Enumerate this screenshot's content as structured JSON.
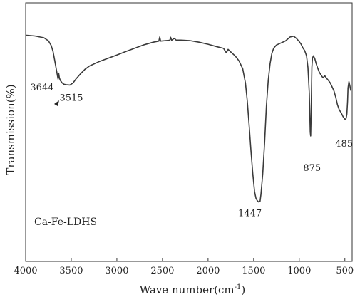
{
  "chart_data": {
    "type": "line",
    "title": "",
    "xlabel": "Wave number(cm",
    "xlabel_sup": "-1",
    "xlabel_close": ")",
    "ylabel": "Transmission(%)",
    "xlim": [
      4000,
      400
    ],
    "x_reversed": true,
    "ylim": [
      0,
      100
    ],
    "y_ticks_shown": false,
    "x_ticks": [
      4000,
      3500,
      3000,
      2500,
      2000,
      1500,
      1000,
      500
    ],
    "x_tick_labels": [
      "4000",
      "3500",
      "3000",
      "2500",
      "2000",
      "1500",
      "1000",
      "500"
    ],
    "grid": false,
    "legend": "none",
    "annotation": "Ca-Fe-LDHS",
    "peak_labels": [
      {
        "text": "3644",
        "x": 3644,
        "y": 70.5
      },
      {
        "text": "3515",
        "x": 3515,
        "y": 68.2
      },
      {
        "text": "1447",
        "x": 1447,
        "y": 23
      },
      {
        "text": "875",
        "x": 875,
        "y": 48.5
      },
      {
        "text": "485",
        "x": 485,
        "y": 52
      }
    ],
    "line_color": "#3a3a3a",
    "series": [
      {
        "values": [
          [
            4000,
            87.5
          ],
          [
            3900,
            87.2
          ],
          [
            3800,
            86.5
          ],
          [
            3750,
            85.3
          ],
          [
            3720,
            83.5
          ],
          [
            3700,
            81.2
          ],
          [
            3680,
            77.5
          ],
          [
            3660,
            73.5
          ],
          [
            3650,
            71.5
          ],
          [
            3644,
            70.5
          ],
          [
            3638,
            72.8
          ],
          [
            3630,
            71.0
          ],
          [
            3620,
            70.0
          ],
          [
            3600,
            69.0
          ],
          [
            3580,
            68.5
          ],
          [
            3550,
            68.3
          ],
          [
            3515,
            68.2
          ],
          [
            3480,
            69.0
          ],
          [
            3450,
            70.5
          ],
          [
            3400,
            72.5
          ],
          [
            3350,
            74.3
          ],
          [
            3300,
            75.6
          ],
          [
            3200,
            77.2
          ],
          [
            3100,
            78.5
          ],
          [
            3000,
            79.8
          ],
          [
            2900,
            81.2
          ],
          [
            2800,
            82.5
          ],
          [
            2700,
            83.8
          ],
          [
            2600,
            84.8
          ],
          [
            2540,
            85.2
          ],
          [
            2530,
            86.8
          ],
          [
            2520,
            85.2
          ],
          [
            2500,
            85.3
          ],
          [
            2420,
            85.5
          ],
          [
            2410,
            86.7
          ],
          [
            2400,
            85.5
          ],
          [
            2370,
            86.3
          ],
          [
            2350,
            85.6
          ],
          [
            2300,
            85.6
          ],
          [
            2200,
            85.4
          ],
          [
            2100,
            84.8
          ],
          [
            2000,
            84.0
          ],
          [
            1900,
            83.0
          ],
          [
            1830,
            82.4
          ],
          [
            1800,
            80.7
          ],
          [
            1780,
            82.0
          ],
          [
            1750,
            81.0
          ],
          [
            1700,
            79.4
          ],
          [
            1660,
            77.5
          ],
          [
            1620,
            74.5
          ],
          [
            1590,
            69.0
          ],
          [
            1570,
            62.0
          ],
          [
            1550,
            53.0
          ],
          [
            1530,
            43.0
          ],
          [
            1510,
            34.0
          ],
          [
            1490,
            27.0
          ],
          [
            1475,
            24.5
          ],
          [
            1460,
            23.5
          ],
          [
            1447,
            23.0
          ],
          [
            1430,
            23.2
          ],
          [
            1420,
            26.0
          ],
          [
            1400,
            34.0
          ],
          [
            1380,
            46.0
          ],
          [
            1360,
            60.0
          ],
          [
            1340,
            70.0
          ],
          [
            1320,
            76.5
          ],
          [
            1300,
            80.5
          ],
          [
            1280,
            82.5
          ],
          [
            1250,
            83.7
          ],
          [
            1200,
            84.5
          ],
          [
            1150,
            85.3
          ],
          [
            1100,
            86.8
          ],
          [
            1060,
            87.1
          ],
          [
            1030,
            86.2
          ],
          [
            1000,
            85.0
          ],
          [
            980,
            84.0
          ],
          [
            960,
            82.6
          ],
          [
            940,
            81.5
          ],
          [
            920,
            79.5
          ],
          [
            905,
            75.0
          ],
          [
            890,
            65.0
          ],
          [
            880,
            50.0
          ],
          [
            875,
            48.5
          ],
          [
            870,
            56.0
          ],
          [
            862,
            75.0
          ],
          [
            855,
            78.5
          ],
          [
            845,
            79.5
          ],
          [
            830,
            78.5
          ],
          [
            815,
            76.5
          ],
          [
            800,
            75.0
          ],
          [
            780,
            73.2
          ],
          [
            760,
            72.0
          ],
          [
            740,
            71.0
          ],
          [
            720,
            71.8
          ],
          [
            700,
            70.8
          ],
          [
            680,
            70.0
          ],
          [
            660,
            69.0
          ],
          [
            640,
            67.5
          ],
          [
            620,
            66.0
          ],
          [
            600,
            63.5
          ],
          [
            580,
            60.5
          ],
          [
            560,
            58.5
          ],
          [
            540,
            57.5
          ],
          [
            520,
            56.0
          ],
          [
            500,
            55.0
          ],
          [
            490,
            55.0
          ],
          [
            485,
            55.5
          ],
          [
            478,
            57.0
          ],
          [
            470,
            62.0
          ],
          [
            465,
            67.0
          ],
          [
            455,
            69.5
          ],
          [
            445,
            68.0
          ],
          [
            435,
            66.0
          ]
        ]
      }
    ]
  }
}
